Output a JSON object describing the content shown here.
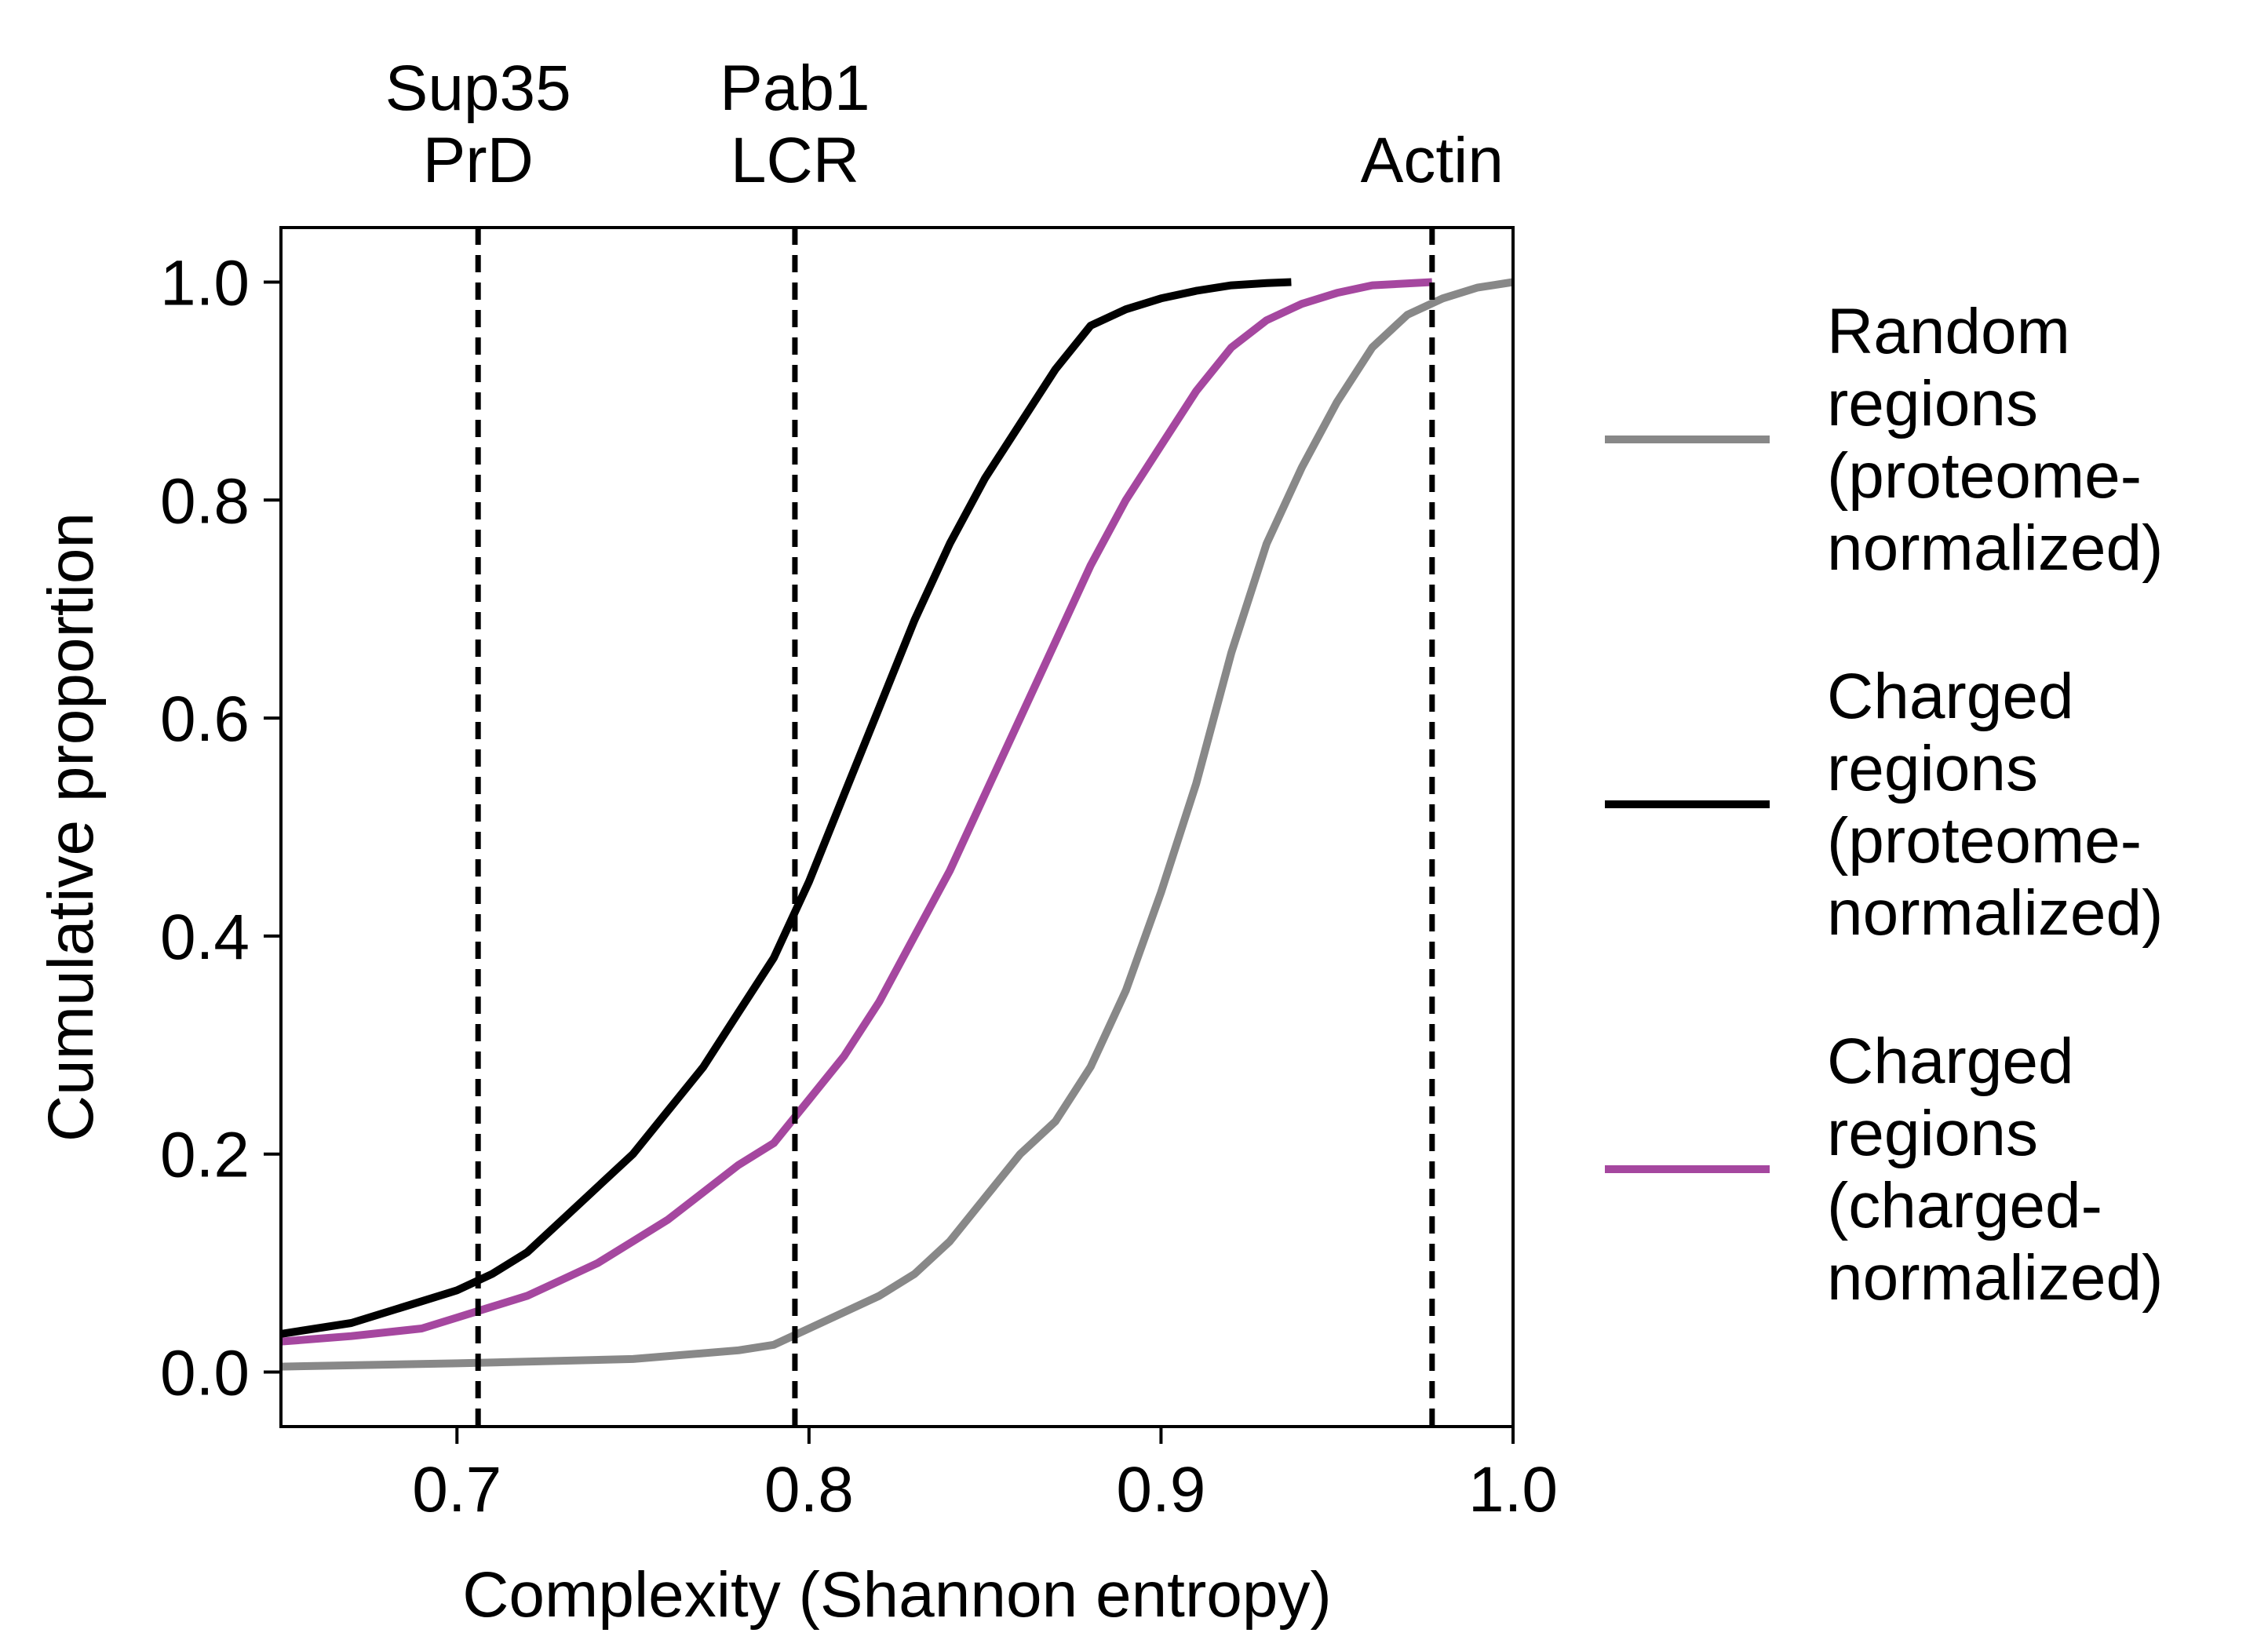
{
  "chart_data": {
    "type": "line",
    "xlabel": "Complexity (Shannon entropy)",
    "ylabel": "Cumulative proportion",
    "xlim": [
      0.65,
      1.0
    ],
    "ylim": [
      -0.05,
      1.05
    ],
    "x_ticks": [
      "0.7",
      "0.8",
      "0.9",
      "1.0"
    ],
    "x_tick_values": [
      0.7,
      0.8,
      0.9,
      1.0
    ],
    "y_ticks": [
      "0.0",
      "0.2",
      "0.4",
      "0.6",
      "0.8",
      "1.0"
    ],
    "y_tick_values": [
      0.0,
      0.2,
      0.4,
      0.6,
      0.8,
      1.0
    ],
    "grid": false,
    "legend_placement": "right, outside plot",
    "reference_lines": [
      {
        "x": 0.706,
        "label": [
          "Sup35",
          "PrD"
        ]
      },
      {
        "x": 0.796,
        "label": [
          "Pab1",
          "LCR"
        ]
      },
      {
        "x": 0.977,
        "label": [
          "Actin"
        ]
      }
    ],
    "series": [
      {
        "name": [
          "Random",
          "regions",
          "(proteome-",
          "normalized)"
        ],
        "color": "#888888",
        "x": [
          0.65,
          0.7,
          0.75,
          0.78,
          0.79,
          0.8,
          0.82,
          0.83,
          0.84,
          0.85,
          0.86,
          0.87,
          0.88,
          0.89,
          0.9,
          0.91,
          0.92,
          0.93,
          0.94,
          0.95,
          0.96,
          0.97,
          0.98,
          0.99,
          1.0
        ],
        "y": [
          0.005,
          0.008,
          0.012,
          0.02,
          0.025,
          0.04,
          0.07,
          0.09,
          0.12,
          0.16,
          0.2,
          0.23,
          0.28,
          0.35,
          0.44,
          0.54,
          0.66,
          0.76,
          0.83,
          0.89,
          0.94,
          0.97,
          0.985,
          0.995,
          1.0
        ]
      },
      {
        "name": [
          "Charged",
          "regions",
          "(proteome-",
          "normalized)"
        ],
        "color": "#000000",
        "x": [
          0.65,
          0.67,
          0.69,
          0.7,
          0.71,
          0.72,
          0.73,
          0.74,
          0.75,
          0.76,
          0.77,
          0.78,
          0.79,
          0.8,
          0.81,
          0.82,
          0.83,
          0.84,
          0.85,
          0.86,
          0.87,
          0.88,
          0.89,
          0.9,
          0.91,
          0.92,
          0.93,
          0.937
        ],
        "y": [
          0.035,
          0.045,
          0.065,
          0.075,
          0.09,
          0.11,
          0.14,
          0.17,
          0.2,
          0.24,
          0.28,
          0.33,
          0.38,
          0.45,
          0.53,
          0.61,
          0.69,
          0.76,
          0.82,
          0.87,
          0.92,
          0.96,
          0.975,
          0.985,
          0.992,
          0.997,
          0.999,
          1.0
        ]
      },
      {
        "name": [
          "Charged",
          "regions",
          "(charged-",
          "normalized)"
        ],
        "color": "#a5479f",
        "x": [
          0.65,
          0.67,
          0.69,
          0.7,
          0.71,
          0.72,
          0.73,
          0.74,
          0.75,
          0.76,
          0.77,
          0.78,
          0.79,
          0.8,
          0.81,
          0.82,
          0.83,
          0.84,
          0.85,
          0.86,
          0.87,
          0.88,
          0.89,
          0.9,
          0.91,
          0.92,
          0.93,
          0.94,
          0.95,
          0.96,
          0.977
        ],
        "y": [
          0.028,
          0.033,
          0.04,
          0.05,
          0.06,
          0.07,
          0.085,
          0.1,
          0.12,
          0.14,
          0.165,
          0.19,
          0.21,
          0.25,
          0.29,
          0.34,
          0.4,
          0.46,
          0.53,
          0.6,
          0.67,
          0.74,
          0.8,
          0.85,
          0.9,
          0.94,
          0.965,
          0.98,
          0.99,
          0.997,
          1.0
        ]
      }
    ]
  }
}
